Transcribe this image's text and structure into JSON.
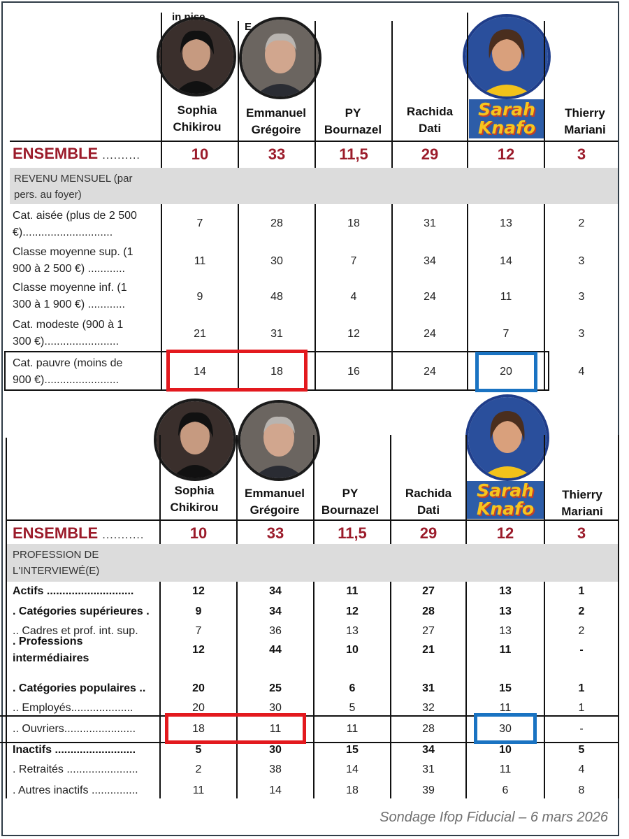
{
  "colors": {
    "ensemble_red": "#9b1b2a",
    "highlight_red": "#e3191e",
    "highlight_blue": "#1a73c2",
    "logo_yellow": "#f7c51e",
    "logo_blue": "#2d5da8",
    "section_grey": "#dcdcdc"
  },
  "top": {
    "cut_texts": [
      "in    nise",
      "E"
    ],
    "candidates": [
      {
        "line1": "Sophia",
        "line2": "Chikirou",
        "photo": "portrait-photo"
      },
      {
        "line1": "Emmanuel",
        "line2": "Grégoire",
        "photo": "portrait-photo"
      },
      {
        "line1": "PY",
        "line2": "Bournazel"
      },
      {
        "line1": "Rachida",
        "line2": "Dati"
      },
      {
        "logo_line1": "Sarah",
        "logo_line2": "Knafo",
        "photo": "portrait-photo"
      },
      {
        "line1": "Thierry",
        "line2": "Mariani"
      }
    ],
    "ensemble": {
      "label": "ENSEMBLE",
      "dots": "..........",
      "values": [
        "10",
        "33",
        "11,5",
        "29",
        "12",
        "3"
      ]
    },
    "section_title": [
      "REVENU MENSUEL (par",
      "pers. au foyer)"
    ],
    "rows": [
      {
        "l1": "Cat. aisée (plus de 2 500",
        "l2": "€).............................",
        "v": [
          "7",
          "28",
          "18",
          "31",
          "13",
          "2"
        ]
      },
      {
        "l1": "Classe moyenne sup. (1",
        "l2": "900 à 2 500 €) ............",
        "v": [
          "11",
          "30",
          "7",
          "34",
          "14",
          "3"
        ]
      },
      {
        "l1": "Classe moyenne inf. (1",
        "l2": "300 à 1 900 €) ............",
        "v": [
          "9",
          "48",
          "4",
          "24",
          "11",
          "3"
        ]
      },
      {
        "l1": "Cat. modeste (900 à 1",
        "l2": "300 €)........................",
        "v": [
          "21",
          "31",
          "12",
          "24",
          "7",
          "3"
        ]
      },
      {
        "l1": "Cat. pauvre (moins de",
        "l2": "900 €)........................",
        "v": [
          "14",
          "18",
          "16",
          "24",
          "20",
          "4"
        ]
      }
    ]
  },
  "bottom": {
    "candidates": [
      {
        "line1": "Sophia",
        "line2": "Chikirou",
        "photo": "portrait-photo"
      },
      {
        "line1": "Emmanuel",
        "line2": "Grégoire",
        "photo": "portrait-photo"
      },
      {
        "line1": "PY",
        "line2": "Bournazel"
      },
      {
        "line1": "Rachida",
        "line2": "Dati"
      },
      {
        "logo_line1": "Sarah",
        "logo_line2": "Knafo",
        "photo": "portrait-photo"
      },
      {
        "line1": "Thierry",
        "line2": "Mariani"
      }
    ],
    "ensemble": {
      "label": "ENSEMBLE",
      "dots": "...........",
      "values": [
        "10",
        "33",
        "11,5",
        "29",
        "12",
        "3"
      ]
    },
    "section_title": [
      "PROFESSION DE",
      "L'INTERVIEWÉ(E)"
    ],
    "rows": [
      {
        "label": "Actifs ............................",
        "bold": true,
        "v": [
          "12",
          "34",
          "11",
          "27",
          "13",
          "1"
        ]
      },
      {
        "label": ". Catégories supérieures .",
        "bold": true,
        "v": [
          "9",
          "34",
          "12",
          "28",
          "13",
          "2"
        ]
      },
      {
        "label": ".. Cadres et prof. int. sup.",
        "bold": false,
        "v": [
          "7",
          "36",
          "13",
          "27",
          "13",
          "2"
        ]
      },
      {
        "label": ". Professions",
        "label2": "intermédiaires",
        "bold": true,
        "v": [
          "12",
          "44",
          "10",
          "21",
          "11",
          "-"
        ]
      },
      {
        "label": ". Catégories populaires ..",
        "bold": true,
        "v": [
          "20",
          "25",
          "6",
          "31",
          "15",
          "1"
        ]
      },
      {
        "label": ".. Employés....................",
        "bold": false,
        "v": [
          "20",
          "30",
          "5",
          "32",
          "11",
          "1"
        ]
      },
      {
        "label": ".. Ouvriers.......................",
        "bold": false,
        "v": [
          "18",
          "11",
          "11",
          "28",
          "30",
          "-"
        ]
      },
      {
        "label": "Inactifs ..........................",
        "bold": true,
        "v": [
          "5",
          "30",
          "15",
          "34",
          "10",
          "5"
        ]
      },
      {
        "label": ". Retraités .......................",
        "bold": false,
        "v": [
          "2",
          "38",
          "14",
          "31",
          "11",
          "4"
        ]
      },
      {
        "label": ". Autres inactifs ...............",
        "bold": false,
        "v": [
          "11",
          "14",
          "18",
          "39",
          "6",
          "8"
        ]
      }
    ]
  },
  "footer": {
    "source": "Sondage Ifop Fiducial – 6 mars 2026"
  }
}
